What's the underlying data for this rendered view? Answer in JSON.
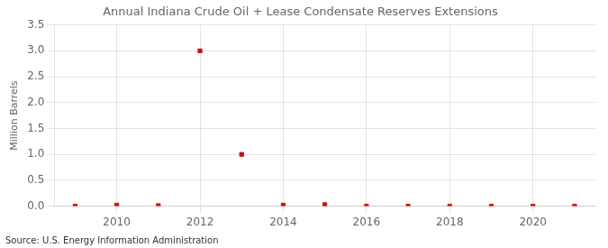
{
  "chart_data": {
    "type": "scatter",
    "title": "Annual Indiana Crude Oil + Lease Condensate Reserves Extensions",
    "ylabel": "Million Barrels",
    "annotation": "Source: U.S. Energy Information Administration",
    "x": [
      2009,
      2010,
      2011,
      2012,
      2013,
      2014,
      2015,
      2016,
      2017,
      2018,
      2019,
      2020,
      2021
    ],
    "values": [
      0.0,
      0.02,
      0.01,
      3.0,
      1.0,
      0.02,
      0.03,
      0.0,
      0.0,
      0.0,
      0.0,
      0.0,
      0.0
    ],
    "color": "#cc1111",
    "marker": "square",
    "xlim": [
      2008.5,
      2021.5
    ],
    "ylim": [
      0,
      3.5
    ],
    "xticks": [
      2010,
      2012,
      2014,
      2016,
      2018,
      2020
    ],
    "yticks": [
      {
        "value": 0,
        "label": "0.0"
      },
      0.5,
      {
        "value": 1,
        "label": "1.0"
      },
      1.5,
      {
        "value": 2,
        "label": "2.0"
      },
      2.5,
      {
        "value": 3,
        "label": "3.0"
      },
      3.5
    ],
    "grid": true
  }
}
